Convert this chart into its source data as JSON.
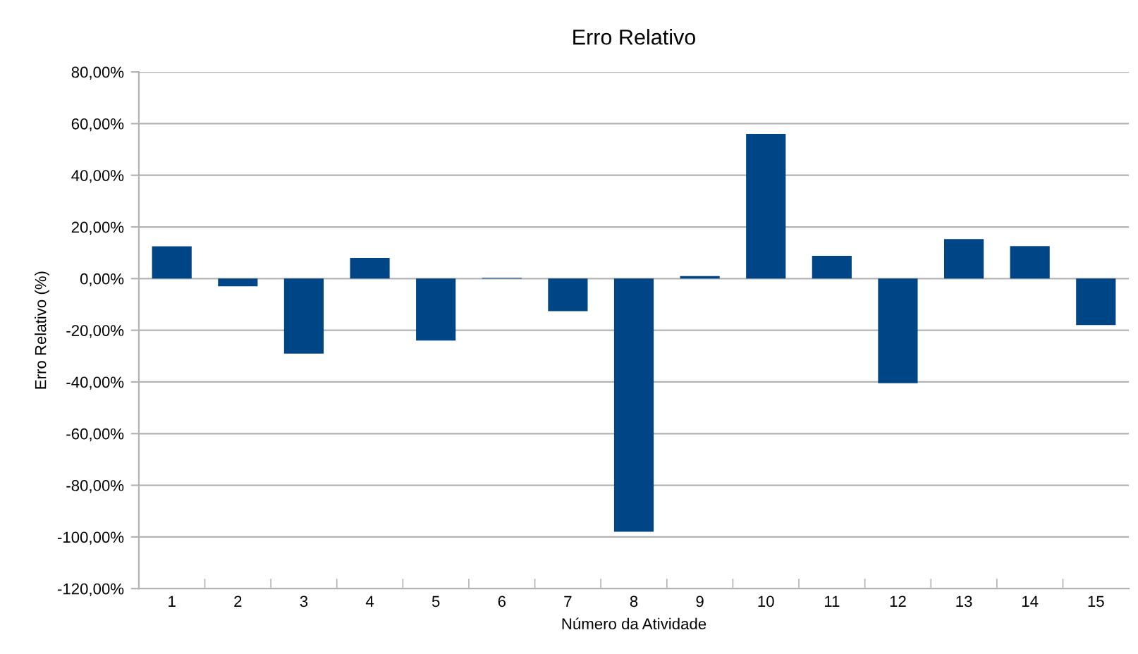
{
  "chart_data": {
    "type": "bar",
    "title": "Erro Relativo",
    "xlabel": "Número da Atividade",
    "ylabel": "Erro Relativo (%)",
    "categories": [
      "1",
      "2",
      "3",
      "4",
      "5",
      "6",
      "7",
      "8",
      "9",
      "10",
      "11",
      "12",
      "13",
      "14",
      "15"
    ],
    "values": [
      12.5,
      -3,
      -29,
      8,
      -24,
      0.3,
      -12.6,
      -98,
      1,
      56,
      8.8,
      -40.5,
      15.3,
      12.6,
      -18
    ],
    "color": "#004586",
    "ylim": [
      -120,
      80
    ],
    "yticks": [
      {
        "value": -120,
        "label": "-120,00%"
      },
      {
        "value": -100,
        "label": "-100,00%"
      },
      {
        "value": -80,
        "label": "-80,00%"
      },
      {
        "value": -60,
        "label": "-60,00%"
      },
      {
        "value": -40,
        "label": "-40,00%"
      },
      {
        "value": -20,
        "label": "-20,00%"
      },
      {
        "value": 0,
        "label": "0,00%"
      },
      {
        "value": 20,
        "label": "20,00%"
      },
      {
        "value": 40,
        "label": "40,00%"
      },
      {
        "value": 60,
        "label": "60,00%"
      },
      {
        "value": 80,
        "label": "80,00%"
      }
    ],
    "grid": "y",
    "legend": false
  }
}
